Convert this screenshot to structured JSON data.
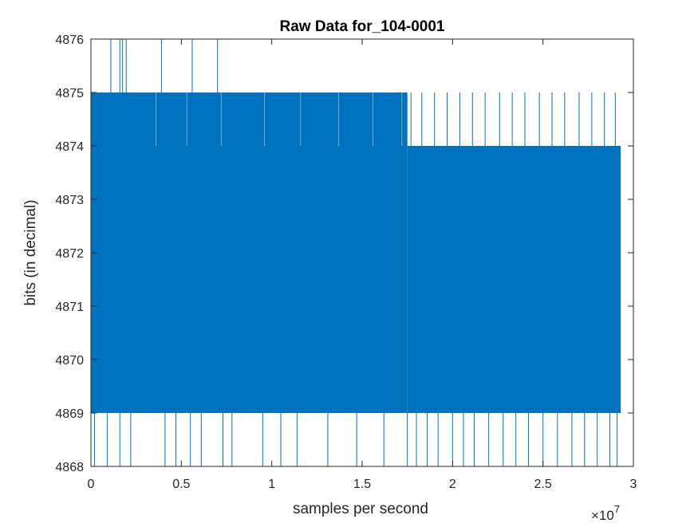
{
  "chart_data": {
    "type": "line",
    "title": "Raw Data for_104-0001",
    "xlabel": "samples per second",
    "ylabel": "bits (in decimal)",
    "xlim": [
      0,
      3
    ],
    "ylim": [
      4868,
      4876
    ],
    "x_exponent_label": "×10",
    "x_exponent_power": "7",
    "x_ticks": [
      {
        "value": 0,
        "label": "0"
      },
      {
        "value": 0.5,
        "label": "0.5"
      },
      {
        "value": 1,
        "label": "1"
      },
      {
        "value": 1.5,
        "label": "1.5"
      },
      {
        "value": 2,
        "label": "2"
      },
      {
        "value": 2.5,
        "label": "2.5"
      },
      {
        "value": 3,
        "label": "3"
      }
    ],
    "y_ticks": [
      {
        "value": 4868,
        "label": "4868"
      },
      {
        "value": 4869,
        "label": "4869"
      },
      {
        "value": 4870,
        "label": "4870"
      },
      {
        "value": 4871,
        "label": "4871"
      },
      {
        "value": 4872,
        "label": "4872"
      },
      {
        "value": 4873,
        "label": "4873"
      },
      {
        "value": 4874,
        "label": "4874"
      },
      {
        "value": 4875,
        "label": "4875"
      },
      {
        "value": 4876,
        "label": "4876"
      }
    ],
    "grid": false,
    "series": [
      {
        "color": "#0072BD",
        "x_range": [
          0,
          2.93
        ],
        "dense_band": {
          "low": 4869,
          "high_before": 4875,
          "high_after": 4874,
          "transition_x": 1.75
        },
        "spikes_up": [
          {
            "x": 0.11,
            "y": 4876
          },
          {
            "x": 0.16,
            "y": 4876
          },
          {
            "x": 0.175,
            "y": 4876
          },
          {
            "x": 0.195,
            "y": 4876
          },
          {
            "x": 0.39,
            "y": 4876
          },
          {
            "x": 0.56,
            "y": 4876
          },
          {
            "x": 0.7,
            "y": 4876
          }
        ],
        "spikes_down": [
          {
            "x": 0.02,
            "y": 4868
          },
          {
            "x": 0.09,
            "y": 4868
          },
          {
            "x": 0.16,
            "y": 4868
          },
          {
            "x": 0.22,
            "y": 4868
          },
          {
            "x": 0.41,
            "y": 4868
          },
          {
            "x": 0.47,
            "y": 4868
          },
          {
            "x": 0.55,
            "y": 4868
          },
          {
            "x": 0.61,
            "y": 4868
          },
          {
            "x": 0.73,
            "y": 4868
          },
          {
            "x": 0.78,
            "y": 4868
          },
          {
            "x": 0.95,
            "y": 4868
          },
          {
            "x": 1.05,
            "y": 4868
          },
          {
            "x": 1.14,
            "y": 4868
          },
          {
            "x": 1.31,
            "y": 4868
          },
          {
            "x": 1.47,
            "y": 4868
          },
          {
            "x": 1.62,
            "y": 4868
          },
          {
            "x": 1.75,
            "y": 4868
          },
          {
            "x": 1.8,
            "y": 4868
          },
          {
            "x": 1.86,
            "y": 4868
          },
          {
            "x": 1.92,
            "y": 4868
          },
          {
            "x": 2.0,
            "y": 4868
          },
          {
            "x": 2.06,
            "y": 4868
          },
          {
            "x": 2.12,
            "y": 4868
          },
          {
            "x": 2.2,
            "y": 4868
          },
          {
            "x": 2.28,
            "y": 4868
          },
          {
            "x": 2.35,
            "y": 4868
          },
          {
            "x": 2.42,
            "y": 4868
          },
          {
            "x": 2.5,
            "y": 4868
          },
          {
            "x": 2.58,
            "y": 4868
          },
          {
            "x": 2.66,
            "y": 4868
          },
          {
            "x": 2.73,
            "y": 4868
          },
          {
            "x": 2.8,
            "y": 4868
          },
          {
            "x": 2.87,
            "y": 4868
          },
          {
            "x": 2.91,
            "y": 4868
          }
        ],
        "spikes_to_4875_after": [
          {
            "x": 1.77,
            "y": 4875
          },
          {
            "x": 1.83,
            "y": 4875
          },
          {
            "x": 1.9,
            "y": 4875
          },
          {
            "x": 1.97,
            "y": 4875
          },
          {
            "x": 2.04,
            "y": 4875
          },
          {
            "x": 2.11,
            "y": 4875
          },
          {
            "x": 2.18,
            "y": 4875
          },
          {
            "x": 2.26,
            "y": 4875
          },
          {
            "x": 2.33,
            "y": 4875
          },
          {
            "x": 2.4,
            "y": 4875
          },
          {
            "x": 2.48,
            "y": 4875
          },
          {
            "x": 2.55,
            "y": 4875
          },
          {
            "x": 2.62,
            "y": 4875
          },
          {
            "x": 2.7,
            "y": 4875
          },
          {
            "x": 2.77,
            "y": 4875
          },
          {
            "x": 2.84,
            "y": 4875
          },
          {
            "x": 2.9,
            "y": 4875
          }
        ]
      }
    ]
  }
}
